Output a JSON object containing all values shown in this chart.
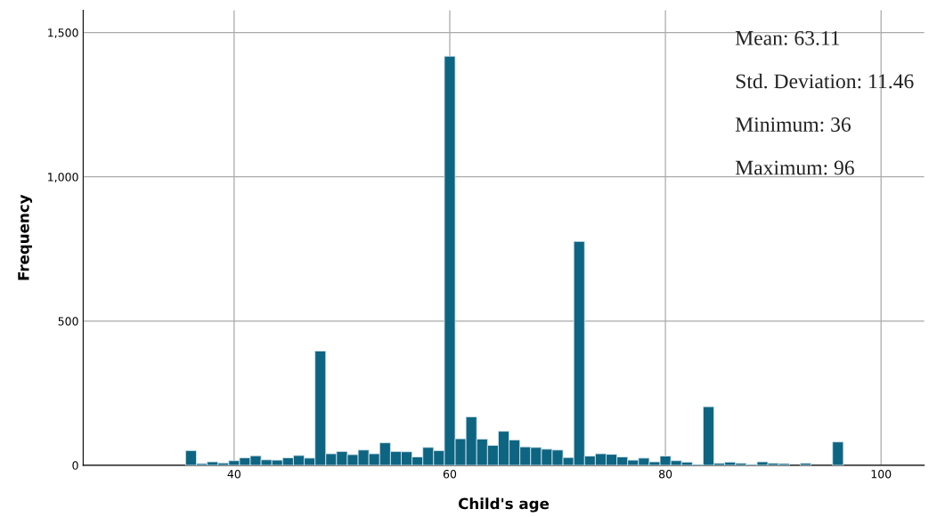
{
  "chart_data": {
    "type": "histogram",
    "xlabel": "Child's age",
    "ylabel": "Frequency",
    "bins": [
      35.5,
      36.5,
      37.5,
      38.5,
      39.5,
      40.5,
      41.5,
      42.5,
      43.5,
      44.5,
      45.5,
      46.5,
      47.5,
      48.5,
      49.5,
      50.5,
      51.5,
      52.5,
      53.5,
      54.5,
      55.5,
      56.5,
      57.5,
      58.5,
      59.5,
      60.5,
      61.5,
      62.5,
      63.5,
      64.5,
      65.5,
      66.5,
      67.5,
      68.5,
      69.5,
      70.5,
      71.5,
      72.5,
      73.5,
      74.5,
      75.5,
      76.5,
      77.5,
      78.5,
      79.5,
      80.5,
      81.5,
      82.5,
      83.5,
      84.5,
      85.5,
      86.5,
      87.5,
      88.5,
      89.5,
      90.5,
      91.5,
      92.5,
      93.5,
      94.5,
      95.5,
      96.5
    ],
    "values": [
      51,
      6,
      12,
      8,
      16,
      26,
      33,
      19,
      18,
      26,
      34,
      25,
      396,
      40,
      48,
      37,
      53,
      40,
      78,
      48,
      47,
      29,
      62,
      51,
      1418,
      92,
      168,
      91,
      69,
      118,
      88,
      64,
      62,
      56,
      53,
      27,
      776,
      32,
      40,
      38,
      29,
      18,
      25,
      12,
      32,
      16,
      11,
      3,
      203,
      7,
      11,
      7,
      3,
      12,
      7,
      6,
      0,
      7,
      0,
      null,
      81
    ],
    "color": "#0e6582",
    "xlim": [
      26,
      104
    ],
    "ylim": [
      0,
      1577
    ],
    "xticks": [
      40,
      60,
      80,
      100
    ],
    "yticks": [
      0,
      {
        "value": 500,
        "label": "500"
      },
      {
        "value": 1000,
        "label": "1,000"
      },
      {
        "value": 1500,
        "label": "1,500"
      }
    ],
    "grid": true,
    "annotations": [
      "Mean: 63.11",
      "Std. Deviation: 11.46",
      "Minimum: 36",
      "Maximum: 96"
    ]
  }
}
